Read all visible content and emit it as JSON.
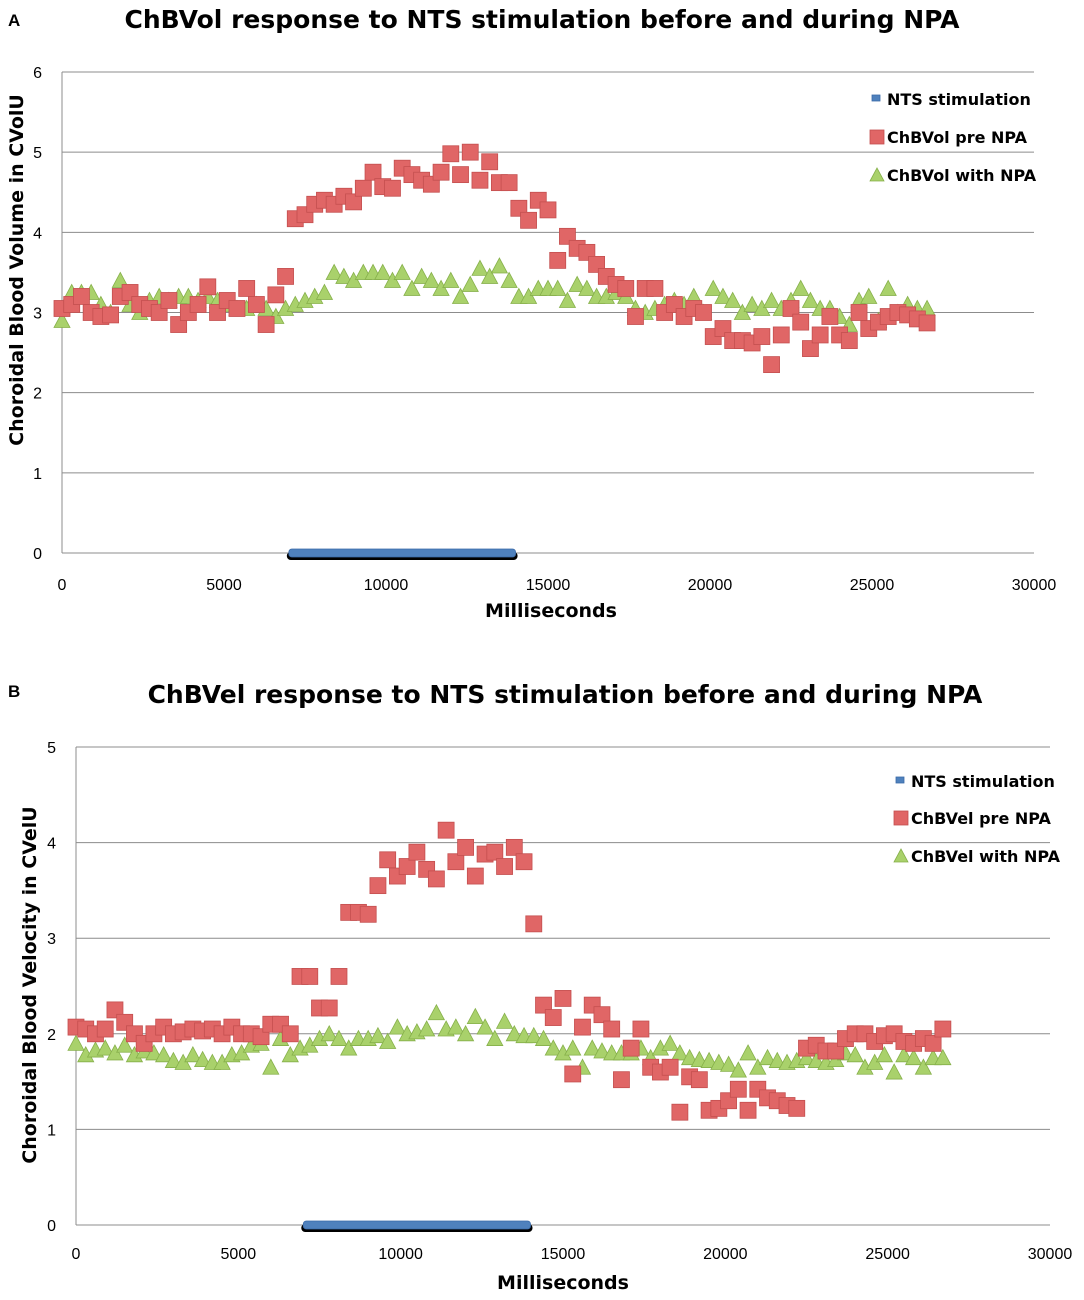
{
  "chart_data": [
    {
      "panel": "A",
      "type": "scatter",
      "title": "ChBVol response to NTS stimulation before and during NPA",
      "xlabel": "Milliseconds",
      "ylabel": "Choroidal Blood Volume in CVolU",
      "xlim": [
        0,
        30000
      ],
      "ylim": [
        0,
        6
      ],
      "xticks": [
        0,
        5000,
        10000,
        15000,
        20000,
        25000,
        30000
      ],
      "yticks": [
        0,
        1,
        2,
        3,
        4,
        5,
        6
      ],
      "grid": "horizontal",
      "legend_position": "top-right",
      "stimulation": {
        "name": "NTS stimulation",
        "start": 7000,
        "end": 14000,
        "y": 0,
        "color": "#4f81bd"
      },
      "series": [
        {
          "name": "ChBVol pre NPA",
          "marker": "square",
          "color": "#e06666",
          "x": [
            0,
            300,
            600,
            900,
            1200,
            1500,
            1800,
            2100,
            2400,
            2700,
            3000,
            3300,
            3600,
            3900,
            4200,
            4500,
            4800,
            5100,
            5400,
            5700,
            6000,
            6300,
            6600,
            6900,
            7200,
            7500,
            7800,
            8100,
            8400,
            8700,
            9000,
            9300,
            9600,
            9900,
            10200,
            10500,
            10800,
            11100,
            11400,
            11700,
            12000,
            12300,
            12600,
            12900,
            13200,
            13500,
            13800,
            14100,
            14400,
            14700,
            15000,
            15300,
            15600,
            15900,
            16200,
            16500,
            16800,
            17100,
            17400,
            17700,
            18000,
            18300,
            18600,
            18900,
            19200,
            19500,
            19800,
            20100,
            20400,
            20700,
            21000,
            21300,
            21600,
            21900,
            22200,
            22500,
            22800,
            23100,
            23400,
            23700,
            24000,
            24300,
            24600,
            24900,
            25200,
            25500,
            25800,
            26100,
            26400,
            26700
          ],
          "y": [
            3.05,
            3.1,
            3.2,
            3.0,
            2.95,
            2.97,
            3.2,
            3.25,
            3.1,
            3.05,
            3.0,
            3.15,
            2.85,
            3.0,
            3.1,
            3.32,
            3.0,
            3.15,
            3.05,
            3.3,
            3.1,
            2.85,
            3.22,
            3.45,
            4.17,
            4.22,
            4.35,
            4.4,
            4.35,
            4.45,
            4.38,
            4.55,
            4.75,
            4.57,
            4.55,
            4.8,
            4.72,
            4.65,
            4.6,
            4.75,
            4.98,
            4.72,
            5.0,
            4.65,
            4.88,
            4.62,
            4.62,
            4.3,
            4.15,
            4.4,
            4.28,
            3.65,
            3.95,
            3.8,
            3.75,
            3.6,
            3.45,
            3.35,
            3.3,
            2.95,
            3.3,
            3.3,
            3.0,
            3.1,
            2.95,
            3.05,
            3.0,
            2.7,
            2.8,
            2.65,
            2.65,
            2.62,
            2.7,
            2.35,
            2.72,
            3.05,
            2.88,
            2.55,
            2.72,
            2.95,
            2.72,
            2.65,
            3.0,
            2.8,
            2.88,
            2.95,
            3.0,
            2.97,
            2.92,
            2.87
          ]
        },
        {
          "name": "ChBVol with NPA",
          "marker": "triangle",
          "color": "#a9d16b",
          "x": [
            0,
            300,
            600,
            900,
            1200,
            1500,
            1800,
            2100,
            2400,
            2700,
            3000,
            3300,
            3600,
            3900,
            4200,
            4500,
            4800,
            5100,
            5400,
            5700,
            6000,
            6300,
            6600,
            6900,
            7200,
            7500,
            7800,
            8100,
            8400,
            8700,
            9000,
            9300,
            9600,
            9900,
            10200,
            10500,
            10800,
            11100,
            11400,
            11700,
            12000,
            12300,
            12600,
            12900,
            13200,
            13500,
            13800,
            14100,
            14400,
            14700,
            15000,
            15300,
            15600,
            15900,
            16200,
            16500,
            16800,
            17100,
            17400,
            17700,
            18000,
            18300,
            18600,
            18900,
            19200,
            19500,
            19800,
            20100,
            20400,
            20700,
            21000,
            21300,
            21600,
            21900,
            22200,
            22500,
            22800,
            23100,
            23400,
            23700,
            24000,
            24300,
            24600,
            24900,
            25200,
            25500,
            25800,
            26100,
            26400,
            26700
          ],
          "y": [
            2.9,
            3.25,
            3.25,
            3.25,
            3.1,
            3.0,
            3.4,
            3.1,
            3.0,
            3.15,
            3.2,
            3.15,
            3.2,
            3.2,
            3.15,
            3.2,
            3.15,
            3.1,
            3.05,
            3.05,
            3.1,
            3.05,
            2.95,
            3.05,
            3.1,
            3.15,
            3.2,
            3.25,
            3.5,
            3.45,
            3.4,
            3.5,
            3.5,
            3.5,
            3.4,
            3.5,
            3.3,
            3.45,
            3.4,
            3.3,
            3.4,
            3.2,
            3.35,
            3.55,
            3.45,
            3.58,
            3.4,
            3.2,
            3.2,
            3.3,
            3.3,
            3.3,
            3.15,
            3.35,
            3.3,
            3.2,
            3.2,
            3.25,
            3.2,
            3.05,
            3.0,
            3.05,
            3.1,
            3.15,
            3.1,
            3.2,
            3.0,
            3.3,
            3.2,
            3.15,
            3.0,
            3.1,
            3.05,
            3.15,
            3.05,
            3.15,
            3.3,
            3.15,
            3.05,
            3.05,
            2.95,
            2.85,
            3.15,
            3.2,
            2.9,
            3.3,
            3.0,
            3.1,
            3.05,
            3.05
          ]
        }
      ]
    },
    {
      "panel": "B",
      "type": "scatter",
      "title": "ChBVel response to NTS stimulation before and during NPA",
      "xlabel": "Milliseconds",
      "ylabel": "Choroidal Blood Velocity in CVelU",
      "xlim": [
        0,
        30000
      ],
      "ylim": [
        0,
        5
      ],
      "xticks": [
        0,
        5000,
        10000,
        15000,
        20000,
        25000,
        30000
      ],
      "yticks": [
        0,
        1,
        2,
        3,
        4,
        5
      ],
      "grid": "horizontal",
      "legend_position": "top-right",
      "stimulation": {
        "name": "NTS stimulation",
        "start": 7000,
        "end": 14000,
        "y": 0,
        "color": "#4f81bd"
      },
      "series": [
        {
          "name": "ChBVel pre NPA",
          "marker": "square",
          "color": "#e06666",
          "x": [
            0,
            300,
            600,
            900,
            1200,
            1500,
            1800,
            2100,
            2400,
            2700,
            3000,
            3300,
            3600,
            3900,
            4200,
            4500,
            4800,
            5100,
            5400,
            5700,
            6000,
            6300,
            6600,
            6900,
            7200,
            7500,
            7800,
            8100,
            8400,
            8700,
            9000,
            9300,
            9600,
            9900,
            10200,
            10500,
            10800,
            11100,
            11400,
            11700,
            12000,
            12300,
            12600,
            12900,
            13200,
            13500,
            13800,
            14100,
            14400,
            14700,
            15000,
            15300,
            15600,
            15900,
            16200,
            16500,
            16800,
            17100,
            17400,
            17700,
            18000,
            18300,
            18600,
            18900,
            19200,
            19500,
            19800,
            20100,
            20400,
            20700,
            21000,
            21300,
            21600,
            21900,
            22200,
            22500,
            22800,
            23100,
            23400,
            23700,
            24000,
            24300,
            24600,
            24900,
            25200,
            25500,
            25800,
            26100,
            26400,
            26700
          ],
          "y": [
            2.07,
            2.05,
            2.0,
            2.05,
            2.25,
            2.12,
            2.0,
            1.9,
            2.0,
            2.07,
            2.0,
            2.02,
            2.05,
            2.03,
            2.05,
            2.0,
            2.07,
            2.0,
            2.0,
            1.97,
            2.1,
            2.1,
            2.0,
            2.6,
            2.6,
            2.27,
            2.27,
            2.6,
            3.27,
            3.27,
            3.25,
            3.55,
            3.82,
            3.65,
            3.75,
            3.9,
            3.72,
            3.62,
            4.13,
            3.8,
            3.95,
            3.65,
            3.88,
            3.9,
            3.75,
            3.95,
            3.8,
            3.15,
            2.3,
            2.17,
            2.37,
            1.58,
            2.07,
            2.3,
            2.2,
            2.05,
            1.52,
            1.85,
            2.05,
            1.65,
            1.6,
            1.65,
            1.18,
            1.55,
            1.52,
            1.2,
            1.22,
            1.3,
            1.42,
            1.2,
            1.42,
            1.33,
            1.3,
            1.25,
            1.22,
            1.85,
            1.88,
            1.82,
            1.82,
            1.95,
            2.0,
            2.0,
            1.92,
            1.98,
            2.0,
            1.92,
            1.9,
            1.95,
            1.9,
            2.05
          ]
        },
        {
          "name": "ChBVel with NPA",
          "marker": "triangle",
          "color": "#a9d16b",
          "x": [
            0,
            300,
            600,
            900,
            1200,
            1500,
            1800,
            2100,
            2400,
            2700,
            3000,
            3300,
            3600,
            3900,
            4200,
            4500,
            4800,
            5100,
            5400,
            5700,
            6000,
            6300,
            6600,
            6900,
            7200,
            7500,
            7800,
            8100,
            8400,
            8700,
            9000,
            9300,
            9600,
            9900,
            10200,
            10500,
            10800,
            11100,
            11400,
            11700,
            12000,
            12300,
            12600,
            12900,
            13200,
            13500,
            13800,
            14100,
            14400,
            14700,
            15000,
            15300,
            15600,
            15900,
            16200,
            16500,
            16800,
            17100,
            17400,
            17700,
            18000,
            18300,
            18600,
            18900,
            19200,
            19500,
            19800,
            20100,
            20400,
            20700,
            21000,
            21300,
            21600,
            21900,
            22200,
            22500,
            22800,
            23100,
            23400,
            23700,
            24000,
            24300,
            24600,
            24900,
            25200,
            25500,
            25800,
            26100,
            26400,
            26700
          ],
          "y": [
            1.9,
            1.78,
            1.83,
            1.85,
            1.8,
            1.88,
            1.78,
            1.82,
            1.8,
            1.78,
            1.72,
            1.7,
            1.78,
            1.73,
            1.7,
            1.7,
            1.78,
            1.8,
            1.88,
            1.9,
            1.65,
            1.95,
            1.78,
            1.85,
            1.88,
            1.95,
            2.0,
            1.95,
            1.85,
            1.95,
            1.95,
            1.98,
            1.92,
            2.07,
            2.0,
            2.02,
            2.05,
            2.22,
            2.05,
            2.07,
            2.0,
            2.18,
            2.07,
            1.95,
            2.13,
            2.0,
            1.98,
            1.98,
            1.95,
            1.85,
            1.8,
            1.85,
            1.65,
            1.85,
            1.82,
            1.8,
            1.8,
            1.8,
            1.85,
            1.75,
            1.85,
            1.9,
            1.8,
            1.75,
            1.73,
            1.72,
            1.7,
            1.68,
            1.62,
            1.8,
            1.65,
            1.75,
            1.72,
            1.7,
            1.72,
            1.75,
            1.72,
            1.7,
            1.73,
            1.8,
            1.78,
            1.65,
            1.7,
            1.78,
            1.6,
            1.78,
            1.75,
            1.65,
            1.75,
            1.75
          ]
        }
      ]
    }
  ]
}
